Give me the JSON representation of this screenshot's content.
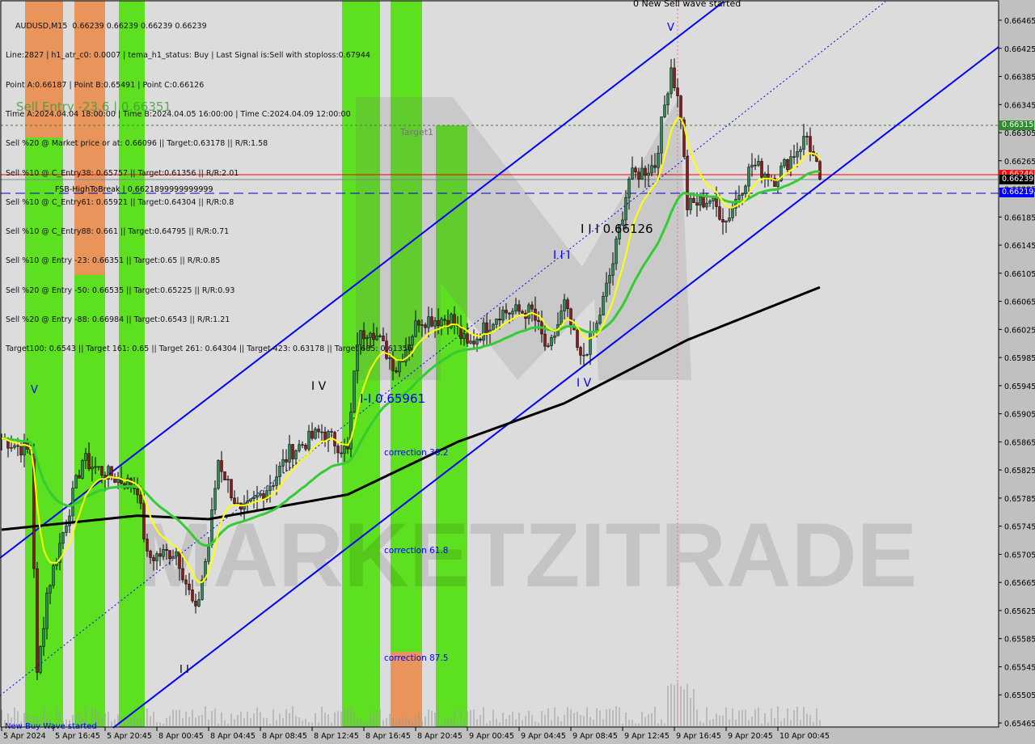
{
  "header": {
    "symbol_line": "AUDUSD,M15  0.66239 0.66239 0.66239 0.66239",
    "lines": [
      "Line:2827 | h1_atr_c0: 0.0007 | tema_h1_status: Buy | Last Signal is:Sell with stoploss:0.67944",
      "Point A:0.66187 | Point B:0.65491 | Point C:0.66126",
      "Time A:2024.04.04 18:00:00 | Time B:2024.04.05 16:00:00 | Time C:2024.04.09 12:00:00",
      "Sell %20 @ Market price or at: 0.66096 || Target:0.63178 || R/R:1.58",
      "Sell %10 @ C_Entry38: 0.65757 || Target:0.61356 || R/R:2.01",
      "Sell %10 @ C_Entry61: 0.65921 || Target:0.64304 || R/R:0.8",
      "Sell %10 @ C_Entry88: 0.661 || Target:0.64795 || R/R:0.71",
      "Sell %10 @ Entry -23: 0.66351 || Target:0.65 || R/R:0.85",
      "Sell %20 @ Entry -50: 0.66535 || Target:0.65225 || R/R:0.93",
      "Sell %20 @ Entry -88: 0.66984 || Target:0.6543 || R/R:1.21",
      "Target100: 0.6543 || Target 161: 0.65 || Target 261: 0.64304 || Target 423: 0.63178 || Target 685: 0.61356"
    ],
    "overlay_text": "Sell Entry -23.6 | 0.66351"
  },
  "annotations": {
    "new_sell": "0 New Sell wave started",
    "new_buy": "New Buy Wave started",
    "target1": "Target1",
    "fsb": "FSB-HighToBreak  |  0.6621899999999999",
    "v_top": "V",
    "v_left": "V",
    "iv_1": "I V",
    "iv_2": "I V",
    "iii_c": "I I I 0.66126",
    "iii": "I I I",
    "ii_b": "I-I 0.65961",
    "ii": "I I",
    "corr38": "correction 38.2",
    "corr61": "correction 61.8",
    "corr87": "correction 87.5",
    "watermark": "MARKETZITRADE"
  },
  "price_tags": {
    "target": {
      "text": "0.66315",
      "color": "#2e8b2e"
    },
    "red": {
      "text": "0.66246",
      "color": "#ff0000"
    },
    "current": {
      "text": "0.66239",
      "color": "#000000"
    },
    "blue": {
      "text": "0.66219",
      "color": "#0000ff"
    }
  },
  "chart_data": {
    "type": "candlestick",
    "symbol": "AUDUSD",
    "timeframe": "M15",
    "ylim": [
      0.65465,
      0.66465
    ],
    "y_ticks": [
      "0.66465",
      "0.66425",
      "0.66385",
      "0.66345",
      "0.66305",
      "0.66265",
      "0.66225",
      "0.66185",
      "0.66145",
      "0.66105",
      "0.66065",
      "0.66025",
      "0.65985",
      "0.65945",
      "0.65905",
      "0.65865",
      "0.65825",
      "0.65785",
      "0.65745",
      "0.65705",
      "0.65665",
      "0.65625",
      "0.65585",
      "0.65545",
      "0.65505",
      "0.65465"
    ],
    "x_ticks": [
      "5 Apr 2024",
      "5 Apr 16:45",
      "5 Apr 20:45",
      "8 Apr 00:45",
      "8 Apr 04:45",
      "8 Apr 08:45",
      "8 Apr 12:45",
      "8 Apr 16:45",
      "8 Apr 20:45",
      "9 Apr 00:45",
      "9 Apr 04:45",
      "9 Apr 08:45",
      "9 Apr 12:45",
      "9 Apr 16:45",
      "9 Apr 20:45",
      "10 Apr 00:45"
    ],
    "close_path": [
      [
        "5 Apr 12:45",
        0.6587
      ],
      [
        "5 Apr 15:00",
        0.6585
      ],
      [
        "5 Apr 15:30",
        0.6553
      ],
      [
        "5 Apr 16:15",
        0.6565
      ],
      [
        "5 Apr 19:00",
        0.6584
      ],
      [
        "5 Apr 20:45",
        0.6582
      ],
      [
        "5 Apr 23:15",
        0.658
      ],
      [
        "8 Apr 00:00",
        0.657
      ],
      [
        "8 Apr 02:15",
        0.6571
      ],
      [
        "8 Apr 03:45",
        0.6562
      ],
      [
        "8 Apr 04:45",
        0.6572
      ],
      [
        "8 Apr 05:30",
        0.6584
      ],
      [
        "8 Apr 07:15",
        0.6576
      ],
      [
        "8 Apr 09:45",
        0.6581
      ],
      [
        "8 Apr 11:00",
        0.6585
      ],
      [
        "8 Apr 13:30",
        0.6588
      ],
      [
        "8 Apr 15:30",
        0.6585
      ],
      [
        "8 Apr 16:15",
        0.6601
      ],
      [
        "8 Apr 17:15",
        0.6603
      ],
      [
        "8 Apr 19:15",
        0.6597
      ],
      [
        "8 Apr 21:00",
        0.6604
      ],
      [
        "8 Apr 23:30",
        0.6604
      ],
      [
        "9 Apr 00:45",
        0.66
      ],
      [
        "9 Apr 03:15",
        0.6605
      ],
      [
        "9 Apr 05:45",
        0.6605
      ],
      [
        "9 Apr 07:00",
        0.6599
      ],
      [
        "9 Apr 08:15",
        0.6606
      ],
      [
        "9 Apr 09:30",
        0.6598
      ],
      [
        "9 Apr 10:45",
        0.6603
      ],
      [
        "9 Apr 12:00",
        0.6612
      ],
      [
        "9 Apr 13:15",
        0.6624
      ],
      [
        "9 Apr 15:15",
        0.6626
      ],
      [
        "9 Apr 16:30",
        0.664
      ],
      [
        "9 Apr 17:15",
        0.6633
      ],
      [
        "9 Apr 17:45",
        0.662
      ],
      [
        "9 Apr 19:30",
        0.6621
      ],
      [
        "9 Apr 20:45",
        0.6618
      ],
      [
        "9 Apr 22:45",
        0.6626
      ],
      [
        "10 Apr 00:30",
        0.6624
      ],
      [
        "10 Apr 03:00",
        0.663
      ],
      [
        "10 Apr 04:00",
        0.66239
      ]
    ],
    "ma_slow_path": [
      [
        "5 Apr 12:45",
        0.6574
      ],
      [
        "5 Apr 23:15",
        0.6576
      ],
      [
        "8 Apr 04:45",
        0.65755
      ],
      [
        "8 Apr 15:30",
        0.6579
      ],
      [
        "9 Apr 00:00",
        0.65865
      ],
      [
        "9 Apr 08:15",
        0.6592
      ],
      [
        "9 Apr 17:45",
        0.6601
      ],
      [
        "10 Apr 04:00",
        0.66085
      ]
    ],
    "horizontal_levels": [
      0.66315,
      0.66246,
      0.66239,
      0.66219
    ],
    "colors": {
      "bull": "#2e8b57",
      "bear": "#8b1a1a",
      "ma_fast": "#ffff00",
      "ma_mid": "#33cc33",
      "ma_slow": "#000000",
      "channel": "#0000ff",
      "buy_zone": "#5de01f",
      "sell_zone": "#e8945a"
    }
  }
}
